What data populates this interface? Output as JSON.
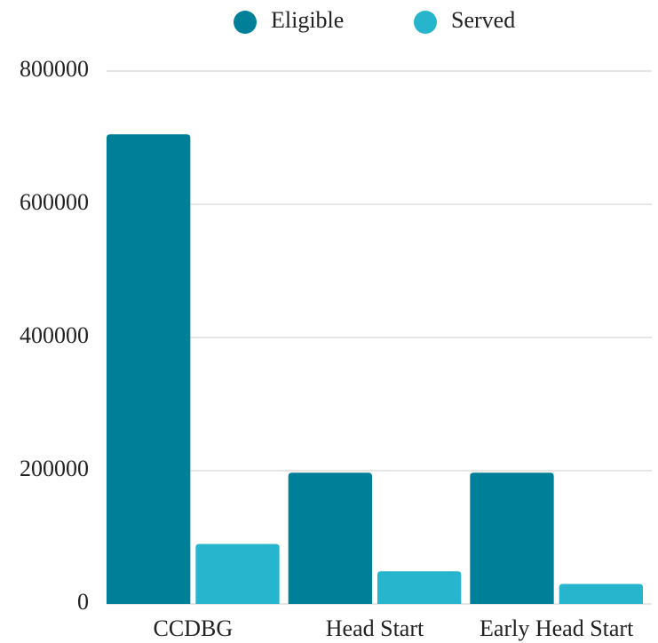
{
  "chart_data": {
    "type": "bar",
    "categories": [
      "CCDBG",
      "Head Start",
      "Early Head Start"
    ],
    "series": [
      {
        "name": "Eligible",
        "color": "#007f99",
        "values": [
          705000,
          197000,
          197000
        ]
      },
      {
        "name": "Served",
        "color": "#26b5cc",
        "values": [
          90000,
          49000,
          30000
        ]
      }
    ],
    "ylim": [
      0,
      800000
    ],
    "yticks": [
      0,
      200000,
      400000,
      600000,
      800000
    ],
    "grid": true,
    "legend": "top"
  }
}
